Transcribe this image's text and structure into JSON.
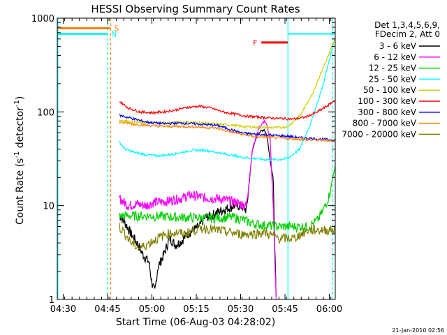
{
  "chart_data": {
    "type": "line",
    "title": "HESSI Observing Summary Count Rates",
    "xlabel": "Start Time (06-Aug-03 04:28:02)",
    "ylabel_main": "Count Rate (s",
    "ylabel_sup1": "-1",
    "ylabel_mid": " detector",
    "ylabel_sup2": "-1",
    "ylabel_end": ")",
    "x_axis": {
      "min_min": 0,
      "max_min": 94,
      "start": "04:28",
      "ticks": [
        {
          "t": 2,
          "label": "04:30"
        },
        {
          "t": 17,
          "label": "04:45"
        },
        {
          "t": 32,
          "label": "05:00"
        },
        {
          "t": 47,
          "label": "05:15"
        },
        {
          "t": 62,
          "label": "05:30"
        },
        {
          "t": 77,
          "label": "05:45"
        },
        {
          "t": 92,
          "label": "06:00"
        }
      ]
    },
    "y_axis": {
      "scale": "log",
      "min": 1,
      "max": 1000,
      "ticks": [
        {
          "v": 1,
          "label": "1"
        },
        {
          "v": 10,
          "label": "10"
        },
        {
          "v": 100,
          "label": "100"
        },
        {
          "v": 1000,
          "label": "1000"
        }
      ]
    },
    "legend": {
      "position": "top-right",
      "header1": "Det 1,3,4,5,6,9,",
      "header2": "FDecim 2, Att 0"
    },
    "series": [
      {
        "name": "3 - 6 keV",
        "color": "#000000",
        "points": [
          [
            21,
            8
          ],
          [
            23,
            6.5
          ],
          [
            25,
            5
          ],
          [
            27,
            4
          ],
          [
            29,
            3
          ],
          [
            31,
            2.5
          ],
          [
            32,
            1.5
          ],
          [
            33,
            1.2
          ],
          [
            34,
            2.2
          ],
          [
            36,
            3
          ],
          [
            38,
            4.5
          ],
          [
            40,
            3.8
          ],
          [
            42,
            4.2
          ],
          [
            44,
            5
          ],
          [
            46,
            5.5
          ],
          [
            48,
            6
          ],
          [
            50,
            7.5
          ],
          [
            52,
            7.8
          ],
          [
            54,
            8.5
          ],
          [
            56,
            9
          ],
          [
            58,
            9.5
          ],
          [
            60,
            10
          ],
          [
            62,
            10
          ],
          [
            64,
            9
          ],
          [
            66,
            40
          ],
          [
            68,
            60
          ],
          [
            70,
            65
          ],
          [
            71,
            55
          ],
          [
            72,
            30
          ],
          [
            73,
            20
          ],
          [
            74,
            1
          ]
        ]
      },
      {
        "name": "6 - 12 keV",
        "color": "#ff00ff",
        "points": [
          [
            21,
            12
          ],
          [
            24,
            10
          ],
          [
            27,
            10.5
          ],
          [
            30,
            10
          ],
          [
            33,
            11
          ],
          [
            36,
            11
          ],
          [
            39,
            11.5
          ],
          [
            42,
            12
          ],
          [
            45,
            13
          ],
          [
            48,
            12.5
          ],
          [
            51,
            12
          ],
          [
            54,
            12
          ],
          [
            57,
            11.5
          ],
          [
            60,
            11
          ],
          [
            62,
            10.5
          ],
          [
            64,
            10
          ],
          [
            66,
            40
          ],
          [
            68,
            65
          ],
          [
            70,
            80
          ],
          [
            71,
            70
          ],
          [
            72,
            50
          ],
          [
            73,
            10
          ],
          [
            74,
            1
          ]
        ]
      },
      {
        "name": "12 - 25 keV",
        "color": "#00d000",
        "points": [
          [
            21,
            7.8
          ],
          [
            30,
            7.8
          ],
          [
            40,
            7.6
          ],
          [
            50,
            7.4
          ],
          [
            60,
            7.5
          ],
          [
            62,
            7.2
          ],
          [
            66,
            6.5
          ],
          [
            70,
            6.2
          ],
          [
            75,
            6
          ],
          [
            80,
            6
          ],
          [
            85,
            6
          ],
          [
            88,
            7
          ],
          [
            90,
            9
          ],
          [
            92,
            13
          ],
          [
            94,
            27
          ]
        ]
      },
      {
        "name": "25 - 50 keV",
        "color": "#00ffff",
        "points": [
          [
            21,
            48
          ],
          [
            23,
            40
          ],
          [
            26,
            37
          ],
          [
            30,
            35
          ],
          [
            34,
            34
          ],
          [
            38,
            35
          ],
          [
            42,
            37
          ],
          [
            46,
            39
          ],
          [
            50,
            39
          ],
          [
            54,
            37
          ],
          [
            58,
            35
          ],
          [
            62,
            33
          ],
          [
            66,
            32
          ],
          [
            70,
            31
          ],
          [
            75,
            31
          ],
          [
            78,
            32
          ],
          [
            82,
            40
          ],
          [
            86,
            80
          ],
          [
            90,
            200
          ],
          [
            94,
            650
          ]
        ]
      },
      {
        "name": "50 - 100 keV",
        "color": "#d0d000",
        "points": [
          [
            21,
            82
          ],
          [
            26,
            78
          ],
          [
            30,
            76
          ],
          [
            36,
            76
          ],
          [
            42,
            78
          ],
          [
            48,
            77
          ],
          [
            54,
            74
          ],
          [
            60,
            72
          ],
          [
            62,
            70
          ],
          [
            66,
            69
          ],
          [
            70,
            68
          ],
          [
            75,
            68
          ],
          [
            78,
            70
          ],
          [
            82,
            90
          ],
          [
            86,
            150
          ],
          [
            90,
            300
          ],
          [
            94,
            600
          ]
        ]
      },
      {
        "name": "100 - 300 keV",
        "color": "#ff0000",
        "points": [
          [
            21,
            130
          ],
          [
            24,
            110
          ],
          [
            28,
            100
          ],
          [
            32,
            98
          ],
          [
            36,
            100
          ],
          [
            40,
            105
          ],
          [
            44,
            112
          ],
          [
            48,
            115
          ],
          [
            52,
            110
          ],
          [
            56,
            100
          ],
          [
            60,
            95
          ],
          [
            64,
            90
          ],
          [
            68,
            88
          ],
          [
            72,
            86
          ],
          [
            76,
            85
          ],
          [
            80,
            84
          ],
          [
            84,
            88
          ],
          [
            88,
            100
          ],
          [
            92,
            120
          ],
          [
            94,
            135
          ]
        ]
      },
      {
        "name": "300 - 800 keV",
        "color": "#0000ff",
        "points": [
          [
            21,
            92
          ],
          [
            26,
            84
          ],
          [
            30,
            78
          ],
          [
            36,
            75
          ],
          [
            42,
            76
          ],
          [
            48,
            74
          ],
          [
            54,
            72
          ],
          [
            58,
            66
          ],
          [
            62,
            60
          ],
          [
            66,
            58
          ],
          [
            70,
            57
          ],
          [
            74,
            56
          ],
          [
            78,
            55
          ],
          [
            82,
            53
          ],
          [
            86,
            52
          ],
          [
            90,
            51
          ],
          [
            94,
            50
          ]
        ]
      },
      {
        "name": "800 - 7000 keV",
        "color": "#ff8000",
        "points": [
          [
            21,
            78
          ],
          [
            26,
            74
          ],
          [
            30,
            72
          ],
          [
            36,
            70
          ],
          [
            42,
            70
          ],
          [
            48,
            69
          ],
          [
            54,
            67
          ],
          [
            58,
            62
          ],
          [
            62,
            58
          ],
          [
            66,
            55
          ],
          [
            70,
            54
          ],
          [
            74,
            53
          ],
          [
            78,
            52
          ],
          [
            82,
            51
          ],
          [
            86,
            50
          ],
          [
            90,
            50
          ],
          [
            94,
            49
          ]
        ]
      },
      {
        "name": "7000 - 20000 keV",
        "color": "#808000",
        "points": [
          [
            21,
            6
          ],
          [
            23,
            5
          ],
          [
            25,
            4
          ],
          [
            28,
            3.5
          ],
          [
            31,
            4
          ],
          [
            34,
            4.5
          ],
          [
            37,
            5
          ],
          [
            40,
            5.2
          ],
          [
            43,
            5
          ],
          [
            46,
            5.5
          ],
          [
            50,
            5.8
          ],
          [
            54,
            5.5
          ],
          [
            58,
            5.2
          ],
          [
            62,
            5
          ],
          [
            66,
            5
          ],
          [
            70,
            5.2
          ],
          [
            75,
            4.5
          ],
          [
            80,
            4.5
          ],
          [
            85,
            5.5
          ],
          [
            90,
            5.5
          ],
          [
            94,
            5.5
          ]
        ]
      }
    ],
    "annotations": [
      {
        "label": "S",
        "color": "#ff8000",
        "t_start": 0,
        "t_end": 18,
        "y": 780
      },
      {
        "label": "N",
        "color": "#00ffff",
        "t_start": 0,
        "t_end": 17,
        "y": 680
      },
      {
        "label": "F",
        "color": "#ff0000",
        "t_start": 69,
        "t_end": 78,
        "y": 550
      }
    ],
    "timestamp": "21-Jan-2010 02:56"
  }
}
